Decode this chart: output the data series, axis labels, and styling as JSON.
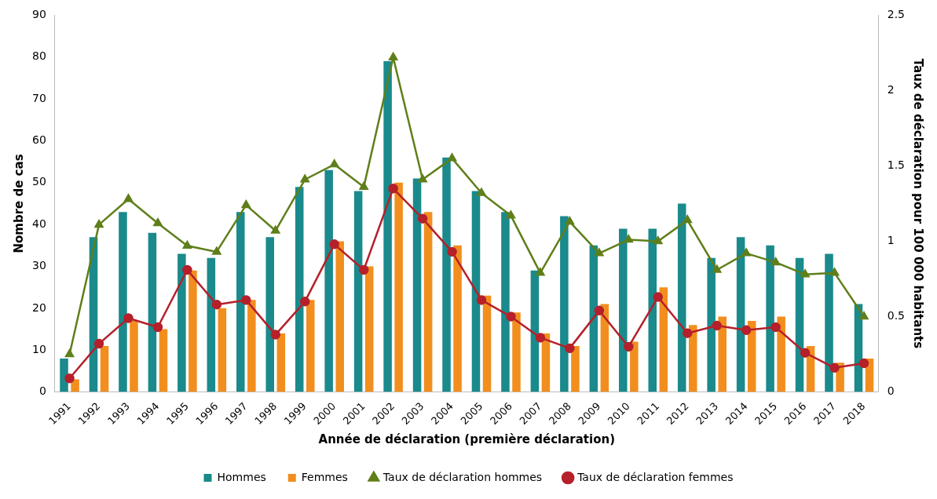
{
  "chart_data": {
    "type": "bar",
    "xlabel": "Année de déclaration (première déclaration)",
    "ylabel": "Nombre de cas",
    "y2label": "Taux de déclaration pour 100 000 habitants",
    "categories": [
      "1991",
      "1992",
      "1993",
      "1994",
      "1995",
      "1996",
      "1997",
      "1998",
      "1999",
      "2000",
      "2001",
      "2002",
      "2003",
      "2004",
      "2005",
      "2006",
      "2007",
      "2008",
      "2009",
      "2010",
      "2011",
      "2012",
      "2013",
      "2014",
      "2015",
      "2016",
      "2017",
      "2018"
    ],
    "series": [
      {
        "name": "Hommes",
        "color": "#1a8a8c",
        "values": [
          8,
          37,
          43,
          38,
          33,
          32,
          43,
          37,
          49,
          53,
          48,
          79,
          51,
          56,
          48,
          43,
          29,
          42,
          35,
          39,
          39,
          45,
          32,
          37,
          35,
          32,
          33,
          21
        ]
      },
      {
        "name": "Femmes",
        "color": "#f28e1e",
        "values": [
          3,
          11,
          17,
          15,
          29,
          20,
          22,
          14,
          22,
          36,
          30,
          50,
          43,
          35,
          23,
          19,
          14,
          11,
          21,
          12,
          25,
          16,
          18,
          17,
          18,
          11,
          7,
          8
        ]
      },
      {
        "name": "Taux de déclaration hommes",
        "type": "line",
        "axis": "y2",
        "marker": "triangle",
        "color": "#5f7f1a",
        "values": [
          0.25,
          1.11,
          1.28,
          1.12,
          0.97,
          0.93,
          1.24,
          1.07,
          1.41,
          1.51,
          1.36,
          2.22,
          1.41,
          1.55,
          1.32,
          1.17,
          0.79,
          1.13,
          0.92,
          1.01,
          1.0,
          1.14,
          0.81,
          0.92,
          0.86,
          0.78,
          0.79,
          0.5
        ]
      },
      {
        "name": "Taux de déclaration femmes",
        "type": "line",
        "axis": "y2",
        "marker": "circle",
        "color": "#b5202a",
        "values": [
          0.09,
          0.32,
          0.49,
          0.43,
          0.81,
          0.58,
          0.61,
          0.38,
          0.6,
          0.98,
          0.81,
          1.35,
          1.15,
          0.93,
          0.61,
          0.5,
          0.36,
          0.29,
          0.54,
          0.3,
          0.63,
          0.39,
          0.44,
          0.41,
          0.43,
          0.26,
          0.16,
          0.19
        ]
      }
    ],
    "ylim": [
      0,
      90
    ],
    "yticks": [
      0,
      10,
      20,
      30,
      40,
      50,
      60,
      70,
      80,
      90
    ],
    "y2lim": [
      0,
      2.5
    ],
    "y2ticks": [
      0,
      0.5,
      1,
      1.5,
      2,
      2.5
    ],
    "legend": "bottom",
    "line_style": "solid"
  }
}
